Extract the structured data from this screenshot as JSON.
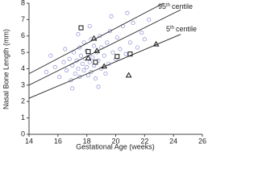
{
  "chart_data": {
    "type": "scatter",
    "xlabel": "Gestational Age (weeks)",
    "ylabel": "Nasal Bone Length (mm)",
    "xlim": [
      14,
      26
    ],
    "xticks": [
      14,
      16,
      18,
      20,
      22,
      24,
      26
    ],
    "ylim": [
      0,
      8
    ],
    "yticks": [
      0,
      1,
      2,
      3,
      4,
      5,
      6,
      7,
      8
    ],
    "annotations": [
      {
        "number": "95",
        "suffix": "th",
        "text": "centile"
      },
      {
        "number": "5",
        "suffix": "th",
        "text": "centile"
      }
    ],
    "series": [
      {
        "marker": "circle",
        "color": "#8a8fd0",
        "x": [
          15.2,
          15.8,
          16.1,
          16.4,
          16.6,
          16.8,
          16.9,
          17.0,
          17.1,
          17.2,
          17.3,
          17.4,
          17.5,
          17.5,
          17.6,
          17.7,
          17.8,
          17.8,
          17.9,
          18.0,
          18.0,
          18.1,
          18.1,
          18.2,
          18.3,
          18.3,
          18.4,
          18.5,
          18.5,
          18.6,
          18.7,
          18.8,
          18.9,
          19.0,
          19.0,
          19.2,
          19.3,
          19.4,
          19.5,
          19.6,
          19.8,
          20.0,
          20.1,
          20.3,
          20.5,
          20.7,
          21.0,
          21.2,
          21.5,
          21.8,
          22.0,
          22.3,
          17.0,
          16.5,
          18.8,
          19.7,
          20.8,
          18.2,
          17.4,
          15.5
        ],
        "values": [
          3.8,
          4.1,
          3.5,
          4.4,
          3.9,
          4.6,
          3.3,
          4.2,
          5.0,
          3.7,
          4.5,
          4.0,
          5.3,
          3.5,
          4.8,
          4.3,
          3.9,
          5.6,
          4.6,
          4.1,
          5.1,
          3.6,
          4.9,
          4.4,
          5.8,
          3.8,
          4.7,
          4.2,
          5.4,
          3.4,
          5.0,
          4.5,
          6.0,
          4.0,
          5.3,
          4.8,
          3.7,
          5.6,
          4.3,
          6.3,
          5.0,
          4.6,
          5.9,
          5.2,
          6.6,
          4.9,
          5.6,
          6.8,
          5.3,
          6.2,
          5.8,
          7.0,
          2.8,
          5.2,
          2.9,
          7.2,
          7.4,
          6.6,
          6.1,
          4.8
        ]
      },
      {
        "marker": "square",
        "color": "#111111",
        "x": [
          17.6,
          18.1,
          18.6,
          20.1,
          21.0
        ],
        "values": [
          6.5,
          5.05,
          4.4,
          4.75,
          4.9
        ]
      },
      {
        "marker": "triangle",
        "color": "#111111",
        "x": [
          18.5,
          18.1,
          19.2,
          18.7,
          20.9,
          22.8
        ],
        "values": [
          5.85,
          4.65,
          4.15,
          5.1,
          3.6,
          5.5
        ]
      },
      {
        "marker": "line",
        "color": "#222222",
        "x": [
          14,
          23.3
        ],
        "values": [
          3.7,
          8.0
        ]
      },
      {
        "marker": "line",
        "color": "#222222",
        "x": [
          14,
          24.5
        ],
        "values": [
          3.0,
          7.6
        ]
      },
      {
        "marker": "line",
        "color": "#222222",
        "x": [
          14,
          24.5
        ],
        "values": [
          2.2,
          6.1
        ]
      }
    ]
  }
}
